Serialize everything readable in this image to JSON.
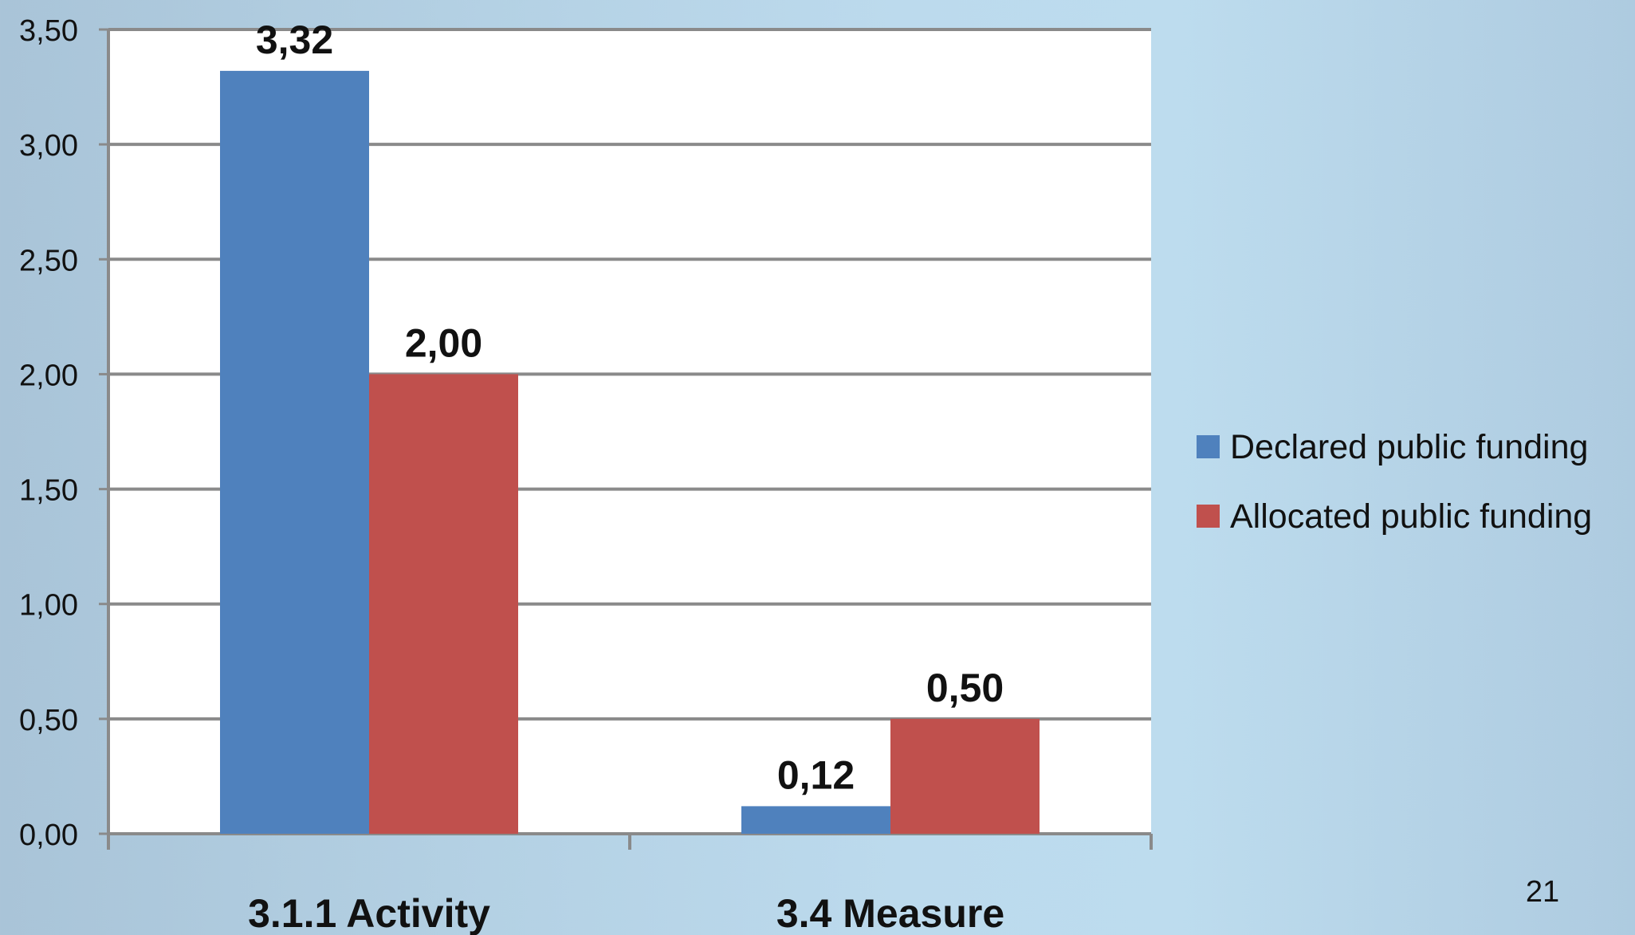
{
  "slide": {
    "page_number": "21"
  },
  "chart_data": {
    "type": "bar",
    "categories": [
      "3.1.1 Activity",
      "3.4 Measure"
    ],
    "series": [
      {
        "name": "Declared public funding",
        "color": "#4f81bd",
        "values": [
          3.32,
          0.12
        ],
        "labels": [
          "3,32",
          "0,12"
        ]
      },
      {
        "name": "Allocated public funding",
        "color": "#c0504d",
        "values": [
          2.0,
          0.5
        ],
        "labels": [
          "2,00",
          "0,50"
        ]
      }
    ],
    "ylim": [
      0,
      3.5
    ],
    "yticks": [
      0,
      0.5,
      1.0,
      1.5,
      2.0,
      2.5,
      3.0,
      3.5
    ],
    "ytick_labels": [
      "0,00",
      "0,50",
      "1,00",
      "1,50",
      "2,00",
      "2,50",
      "3,00",
      "3,50"
    ],
    "grid": true,
    "legend_position": "right",
    "title": "",
    "xlabel": "",
    "ylabel": ""
  }
}
